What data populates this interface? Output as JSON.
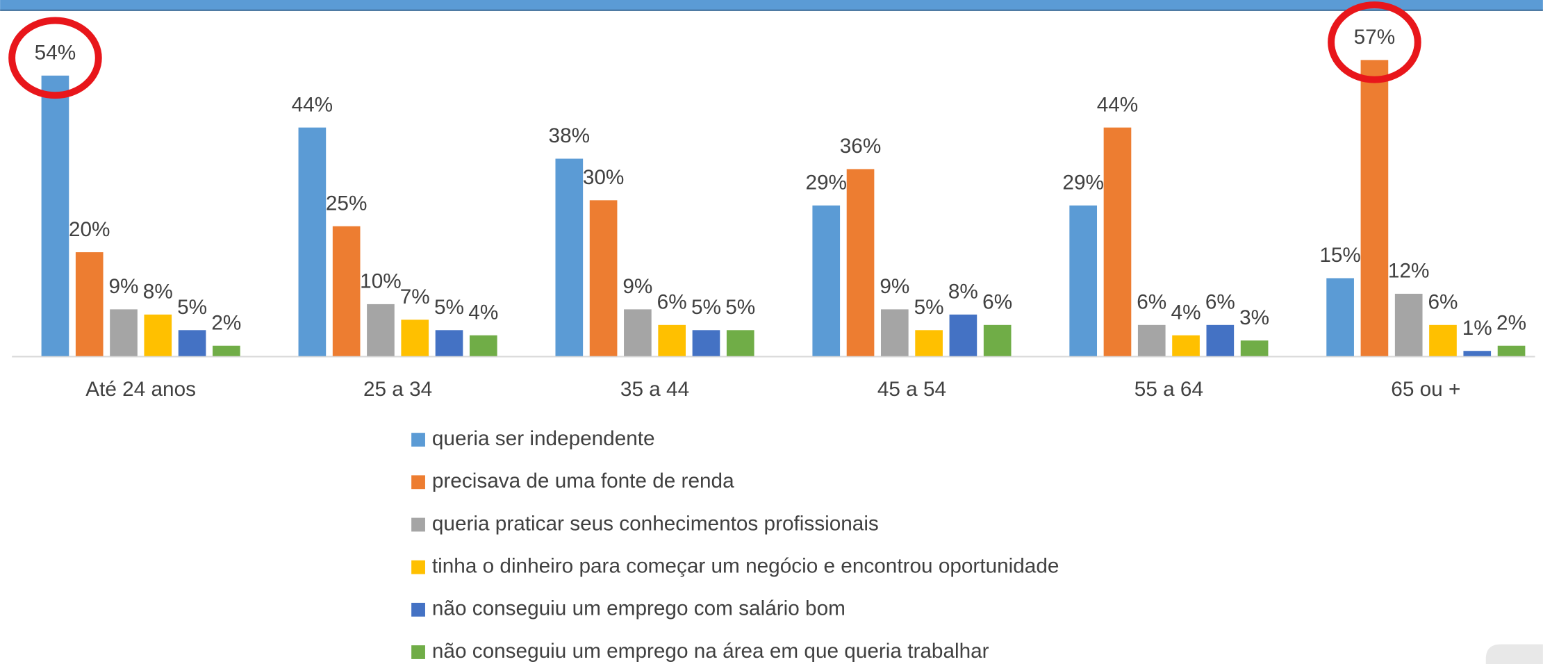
{
  "chart_data": {
    "type": "bar",
    "categories": [
      "Até 24 anos",
      "25 a 34",
      "35 a 44",
      "45 a 54",
      "55 a 64",
      "65 ou +"
    ],
    "series": [
      {
        "name": "queria ser independente",
        "color": "#5b9bd5",
        "values": [
          54,
          44,
          38,
          29,
          29,
          15
        ],
        "value_labels": [
          "54%",
          "44%",
          "38%",
          "29%",
          "29%",
          "15%"
        ]
      },
      {
        "name": "precisava de uma fonte de renda",
        "color": "#ed7d31",
        "values": [
          20,
          25,
          30,
          36,
          44,
          57
        ],
        "value_labels": [
          "20%",
          "25%",
          "30%",
          "36%",
          "44%",
          "57%"
        ]
      },
      {
        "name": "queria praticar seus conhecimentos profissionais",
        "color": "#a5a5a5",
        "values": [
          9,
          10,
          9,
          9,
          6,
          12
        ],
        "value_labels": [
          "9%",
          "10%",
          "9%",
          "9%",
          "6%",
          "12%"
        ]
      },
      {
        "name": "tinha o dinheiro para começar um negócio e encontrou oportunidade",
        "color": "#ffc000",
        "values": [
          8,
          7,
          6,
          5,
          4,
          6
        ],
        "value_labels": [
          "8%",
          "7%",
          "6%",
          "5%",
          "4%",
          "6%"
        ]
      },
      {
        "name": "não conseguiu um emprego com salário bom",
        "color": "#4472c4",
        "values": [
          5,
          5,
          5,
          8,
          6,
          1
        ],
        "value_labels": [
          "5%",
          "5%",
          "5%",
          "8%",
          "6%",
          "1%"
        ]
      },
      {
        "name": "não conseguiu um emprego na área em que queria trabalhar",
        "color": "#70ad47",
        "values": [
          2,
          4,
          5,
          6,
          3,
          2
        ],
        "value_labels": [
          "2%",
          "4%",
          "5%",
          "6%",
          "3%",
          "2%"
        ]
      }
    ],
    "legend": "bottom"
  }
}
